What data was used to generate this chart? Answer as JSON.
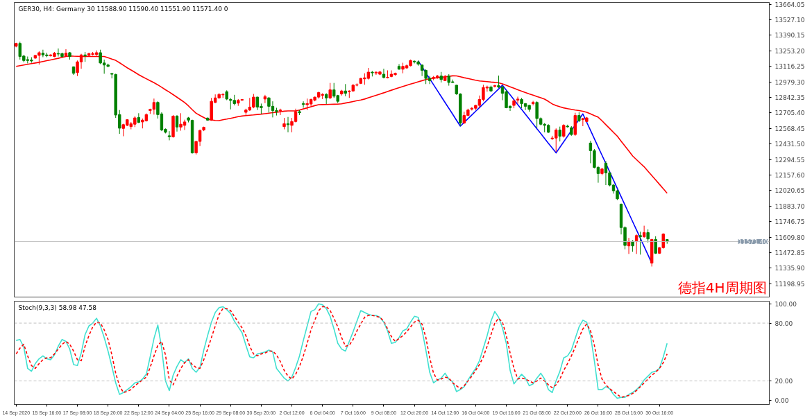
{
  "chart_data": [
    {
      "type": "candlestick",
      "title": "GER30, H4:  Germany 30  11588.90 11590.40 11551.90 11571.40  0",
      "tick_labels": "y",
      "ylim": [
        11082,
        13680
      ],
      "yticks": [
        {
          "value": 13664.05,
          "label": "13664.05"
        },
        {
          "value": 13527.1,
          "label": "13527.10"
        },
        {
          "value": 13390.15,
          "label": "13390.15"
        },
        {
          "value": 13253.2,
          "label": "13253.20"
        },
        {
          "value": 13116.25,
          "label": "13116.25"
        },
        {
          "value": 12979.3,
          "label": "12979.30"
        },
        {
          "value": 12842.35,
          "label": "12842.35"
        },
        {
          "value": 12705.4,
          "label": "12705.40"
        },
        {
          "value": 12568.45,
          "label": "12568.45"
        },
        {
          "value": 12431.5,
          "label": "12431.50"
        },
        {
          "value": 12294.55,
          "label": "12294.55"
        },
        {
          "value": 12157.6,
          "label": "12157.60"
        },
        {
          "value": 12020.65,
          "label": "12020.65"
        },
        {
          "value": 11883.7,
          "label": "11883.70"
        },
        {
          "value": 11746.75,
          "label": "11746.75"
        },
        {
          "value": 11609.8,
          "label": "11609.80"
        },
        {
          "value": 11472.85,
          "label": "11472.85"
        },
        {
          "value": 11335.9,
          "label": "11335.90"
        },
        {
          "value": 11198.95,
          "label": "11198.95"
        }
      ],
      "categories": [
        null,
        null,
        null,
        null,
        null,
        null,
        null,
        null,
        null,
        null,
        null,
        null,
        null,
        null,
        null,
        null,
        null,
        null,
        null,
        null,
        null,
        null,
        null,
        null,
        null,
        null,
        null,
        null,
        null,
        null,
        null,
        null,
        null,
        null,
        null,
        null,
        null,
        null,
        null,
        null,
        null,
        null,
        null,
        null,
        null,
        null,
        null,
        null,
        null,
        null,
        null,
        null,
        null,
        null,
        null,
        null,
        null,
        null,
        null,
        null,
        null,
        null,
        null,
        null,
        null,
        null,
        null,
        null,
        null,
        null,
        null,
        null,
        null,
        null,
        null,
        null,
        null,
        null,
        null,
        null,
        null,
        null,
        null,
        null,
        null,
        null,
        null,
        null,
        null,
        null,
        null,
        null,
        null,
        null,
        null,
        null,
        null,
        null,
        null,
        null,
        null,
        null,
        null,
        null,
        null,
        null,
        null,
        null,
        null,
        null,
        null,
        null,
        null,
        null,
        null,
        null,
        null,
        null,
        null,
        null,
        null,
        null,
        null,
        null,
        null,
        null,
        null,
        null,
        null,
        null,
        null,
        null,
        null,
        null,
        null,
        null,
        null,
        null,
        null,
        null,
        null,
        null,
        null,
        null,
        null,
        null,
        null,
        null,
        null,
        null,
        null,
        null,
        null,
        null,
        null,
        null,
        null,
        null,
        null,
        null,
        null,
        null,
        null,
        null,
        null,
        null,
        null,
        null,
        null,
        null,
        null
      ],
      "ohlc": [
        [
          13294,
          13324,
          13284,
          13318
        ],
        [
          13318,
          13334,
          13176,
          13203
        ],
        [
          13207,
          13217,
          13152,
          13168
        ],
        [
          13176,
          13203,
          13142,
          13168
        ],
        [
          13172,
          13197,
          13148,
          13164
        ],
        [
          13189,
          13217,
          13183,
          13213
        ],
        [
          13213,
          13249,
          13132,
          13237
        ],
        [
          13233,
          13263,
          13197,
          13217
        ],
        [
          13217,
          13237,
          13197,
          13209
        ],
        [
          13209,
          13223,
          13203,
          13217
        ],
        [
          13203,
          13243,
          13197,
          13233
        ],
        [
          13229,
          13274,
          13203,
          13225
        ],
        [
          13229,
          13237,
          13193,
          13203
        ],
        [
          13209,
          13268,
          13203,
          13233
        ],
        [
          13237,
          13243,
          13176,
          13203
        ],
        [
          13112,
          13116,
          13041,
          13055
        ],
        [
          13061,
          13168,
          13031,
          13156
        ],
        [
          13156,
          13227,
          13095,
          13217
        ],
        [
          13217,
          13243,
          13156,
          13209
        ],
        [
          13213,
          13237,
          13203,
          13229
        ],
        [
          13221,
          13243,
          13213,
          13229
        ],
        [
          13221,
          13257,
          13209,
          13237
        ],
        [
          13237,
          13263,
          13136,
          13146
        ],
        [
          13146,
          13176,
          13051,
          13128
        ],
        [
          13128,
          13140,
          13108,
          13116
        ],
        [
          13053,
          13059,
          13010,
          13047
        ],
        [
          13045,
          13051,
          12662,
          12687
        ],
        [
          12691,
          12731,
          12521,
          12571
        ],
        [
          12569,
          12610,
          12500,
          12602
        ],
        [
          12596,
          12650,
          12589,
          12646
        ],
        [
          12585,
          12626,
          12561,
          12610
        ],
        [
          12606,
          12677,
          12581,
          12662
        ],
        [
          12666,
          12703,
          12616,
          12622
        ],
        [
          12626,
          12656,
          12569,
          12642
        ],
        [
          12636,
          12701,
          12630,
          12691
        ],
        [
          12727,
          12743,
          12697,
          12737
        ],
        [
          12737,
          12832,
          12691,
          12798
        ],
        [
          12798,
          12808,
          12656,
          12691
        ],
        [
          12697,
          12711,
          12545,
          12555
        ],
        [
          12561,
          12569,
          12525,
          12535
        ],
        [
          12504,
          12545,
          12464,
          12496
        ],
        [
          12494,
          12687,
          12488,
          12677
        ],
        [
          12677,
          12687,
          12541,
          12581
        ],
        [
          12581,
          12703,
          12549,
          12606
        ],
        [
          12596,
          12646,
          12555,
          12626
        ],
        [
          12662,
          12670,
          12622,
          12642
        ],
        [
          12640,
          12646,
          12347,
          12353
        ],
        [
          12353,
          12460,
          12339,
          12454
        ],
        [
          12454,
          12559,
          12413,
          12551
        ],
        [
          12555,
          12585,
          12545,
          12579
        ],
        [
          12660,
          12666,
          12636,
          12642
        ],
        [
          12642,
          12838,
          12636,
          12808
        ],
        [
          12798,
          12869,
          12792,
          12838
        ],
        [
          12838,
          12879,
          12832,
          12869
        ],
        [
          12865,
          12879,
          12838,
          12869
        ],
        [
          12893,
          12905,
          12818,
          12828
        ],
        [
          12824,
          12838,
          12737,
          12816
        ],
        [
          12816,
          12865,
          12772,
          12788
        ],
        [
          12792,
          12828,
          12768,
          12816
        ],
        [
          12818,
          12828,
          12812,
          12824
        ],
        [
          12711,
          12743,
          12687,
          12731
        ],
        [
          12731,
          12838,
          12723,
          12757
        ],
        [
          12757,
          12873,
          12747,
          12845
        ],
        [
          12845,
          12849,
          12731,
          12757
        ],
        [
          12764,
          12788,
          12697,
          12751
        ],
        [
          12828,
          12865,
          12792,
          12849
        ],
        [
          12838,
          12845,
          12707,
          12764
        ],
        [
          12764,
          12808,
          12666,
          12727
        ],
        [
          12727,
          12751,
          12683,
          12719
        ],
        [
          12723,
          12743,
          12687,
          12731
        ],
        [
          12585,
          12662,
          12561,
          12610
        ],
        [
          12610,
          12670,
          12535,
          12602
        ],
        [
          12596,
          12662,
          12535,
          12630
        ],
        [
          12630,
          12743,
          12622,
          12717
        ],
        [
          12717,
          12731,
          12687,
          12707
        ],
        [
          12788,
          12808,
          12751,
          12780
        ],
        [
          12778,
          12832,
          12731,
          12788
        ],
        [
          12784,
          12832,
          12764,
          12824
        ],
        [
          12818,
          12849,
          12808,
          12845
        ],
        [
          12845,
          12893,
          12832,
          12885
        ],
        [
          12861,
          12879,
          12828,
          12869
        ],
        [
          12869,
          12879,
          12784,
          12838
        ],
        [
          12838,
          12970,
          12828,
          12909
        ],
        [
          12909,
          12970,
          12838,
          12853
        ],
        [
          12859,
          12865,
          12792,
          12808
        ],
        [
          12873,
          12909,
          12859,
          12899
        ],
        [
          12899,
          12960,
          12853,
          12879
        ],
        [
          12893,
          12905,
          12838,
          12899
        ],
        [
          12899,
          12960,
          12893,
          12950
        ],
        [
          12950,
          12966,
          12940,
          12954
        ],
        [
          12966,
          13015,
          12960,
          13010
        ],
        [
          13006,
          13055,
          12954,
          13015
        ],
        [
          13010,
          13102,
          13000,
          13065
        ],
        [
          13065,
          13075,
          13027,
          13059
        ],
        [
          13057,
          13071,
          13041,
          13065
        ],
        [
          13047,
          13075,
          13039,
          13067
        ],
        [
          13047,
          13095,
          13010,
          13018
        ],
        [
          13016,
          13081,
          13010,
          13020
        ],
        [
          13027,
          13081,
          13020,
          13047
        ],
        [
          13043,
          13061,
          13035,
          13055
        ],
        [
          13116,
          13136,
          13087,
          13091
        ],
        [
          13091,
          13148,
          13055,
          13116
        ],
        [
          13102,
          13132,
          13095,
          13122
        ],
        [
          13122,
          13176,
          13116,
          13168
        ],
        [
          13162,
          13168,
          13142,
          13156
        ],
        [
          13156,
          13168,
          13122,
          13136
        ],
        [
          13128,
          13132,
          13031,
          13081
        ],
        [
          13081,
          13091,
          12960,
          13010
        ],
        [
          13010,
          13031,
          12960,
          12990
        ],
        [
          13010,
          13031,
          12994,
          13020
        ],
        [
          13020,
          13041,
          13006,
          13031
        ],
        [
          13031,
          13067,
          12974,
          13000
        ],
        [
          12990,
          13041,
          12986,
          13027
        ],
        [
          13031,
          13047,
          12946,
          12974
        ],
        [
          12980,
          13000,
          12970,
          12974
        ],
        [
          12950,
          12954,
          12865,
          12873
        ],
        [
          12873,
          12879,
          12589,
          12616
        ],
        [
          12616,
          12717,
          12610,
          12683
        ],
        [
          12683,
          12743,
          12677,
          12731
        ],
        [
          12739,
          12757,
          12727,
          12747
        ],
        [
          12747,
          12778,
          12731,
          12772
        ],
        [
          12772,
          12859,
          12747,
          12824
        ],
        [
          12824,
          12954,
          12808,
          12930
        ],
        [
          12925,
          12946,
          12893,
          12934
        ],
        [
          12934,
          12946,
          12893,
          12899
        ],
        [
          12940,
          12954,
          12930,
          12946
        ],
        [
          12946,
          13035,
          12925,
          12934
        ],
        [
          12934,
          12946,
          12818,
          12879
        ],
        [
          12893,
          12905,
          12747,
          12751
        ],
        [
          12764,
          12772,
          12723,
          12751
        ],
        [
          12772,
          12824,
          12747,
          12812
        ],
        [
          12818,
          12849,
          12788,
          12828
        ],
        [
          12824,
          12838,
          12747,
          12788
        ],
        [
          12788,
          12792,
          12731,
          12764
        ],
        [
          12772,
          12778,
          12717,
          12737
        ],
        [
          12788,
          12812,
          12772,
          12798
        ],
        [
          12798,
          12808,
          12575,
          12656
        ],
        [
          12656,
          12666,
          12596,
          12606
        ],
        [
          12606,
          12616,
          12535,
          12596
        ],
        [
          12596,
          12606,
          12529,
          12535
        ],
        [
          12478,
          12504,
          12468,
          12484
        ],
        [
          12484,
          12569,
          12363,
          12555
        ],
        [
          12555,
          12585,
          12454,
          12500
        ],
        [
          12500,
          12606,
          12488,
          12596
        ],
        [
          12589,
          12602,
          12575,
          12583
        ],
        [
          12575,
          12589,
          12504,
          12515
        ],
        [
          12515,
          12707,
          12504,
          12683
        ],
        [
          12683,
          12711,
          12626,
          12636
        ],
        [
          12646,
          12662,
          12589,
          12656
        ],
        [
          12630,
          12670,
          12626,
          12662
        ],
        [
          12440,
          12460,
          12262,
          12373
        ],
        [
          12373,
          12387,
          12217,
          12225
        ],
        [
          12225,
          12237,
          12090,
          12171
        ],
        [
          12171,
          12221,
          12156,
          12211
        ],
        [
          12262,
          12282,
          12069,
          12177
        ],
        [
          12177,
          12191,
          12059,
          12069
        ],
        [
          12069,
          12079,
          11994,
          12019
        ],
        [
          12019,
          12029,
          11938,
          11948
        ],
        [
          11901,
          11907,
          11634,
          11695
        ],
        [
          11695,
          11705,
          11503,
          11537
        ],
        [
          11533,
          11604,
          11462,
          11573
        ],
        [
          11573,
          11584,
          11482,
          11533
        ],
        [
          11577,
          11634,
          11462,
          11624
        ],
        [
          11624,
          11658,
          11456,
          11614
        ],
        [
          11614,
          11711,
          11604,
          11650
        ],
        [
          11650,
          11679,
          11563,
          11594
        ],
        [
          11381,
          11594,
          11351,
          11590
        ],
        [
          11590,
          11618,
          11462,
          11468
        ],
        [
          11468,
          11523,
          11462,
          11517
        ],
        [
          11517,
          11644,
          11509,
          11638
        ],
        [
          11588.9,
          11590.4,
          11551.9,
          11571.4
        ]
      ],
      "colors": [
        "#ff0000",
        "#008000",
        "#008000",
        "#008000",
        "#008000",
        "#ff0000",
        "#ff0000",
        "#008000",
        "#008000",
        "#ff0000",
        "#ff0000",
        "#008000",
        "#008000",
        "#ff0000",
        "#008000",
        "#008000",
        "#ff0000",
        "#ff0000",
        "#008000",
        "#ff0000",
        "#ff0000",
        "#ff0000",
        "#008000",
        "#008000",
        "#008000",
        "#008000",
        "#008000",
        "#008000",
        "#ff0000",
        "#ff0000",
        "#ff0000",
        "#ff0000",
        "#008000",
        "#ff0000",
        "#ff0000",
        "#ff0000",
        "#ff0000",
        "#008000",
        "#008000",
        "#008000",
        "#008000",
        "#ff0000",
        "#008000",
        "#ff0000",
        "#ff0000",
        "#008000",
        "#008000",
        "#ff0000",
        "#ff0000",
        "#ff0000",
        "#008000",
        "#ff0000",
        "#ff0000",
        "#ff0000",
        "#ff0000",
        "#008000",
        "#008000",
        "#008000",
        "#ff0000",
        "#ff0000",
        "#ff0000",
        "#ff0000",
        "#ff0000",
        "#008000",
        "#008000",
        "#ff0000",
        "#008000",
        "#008000",
        "#008000",
        "#ff0000",
        "#ff0000",
        "#008000",
        "#ff0000",
        "#ff0000",
        "#008000",
        "#008000",
        "#ff0000",
        "#ff0000",
        "#ff0000",
        "#ff0000",
        "#ff0000",
        "#008000",
        "#ff0000",
        "#008000",
        "#008000",
        "#ff0000",
        "#008000",
        "#ff0000",
        "#ff0000",
        "#ff0000",
        "#ff0000",
        "#ff0000",
        "#ff0000",
        "#008000",
        "#ff0000",
        "#ff0000",
        "#008000",
        "#ff0000",
        "#ff0000",
        "#ff0000",
        "#008000",
        "#ff0000",
        "#ff0000",
        "#ff0000",
        "#008000",
        "#008000",
        "#008000",
        "#008000",
        "#008000",
        "#ff0000",
        "#ff0000",
        "#008000",
        "#ff0000",
        "#008000",
        "#008000",
        "#008000",
        "#008000",
        "#ff0000",
        "#ff0000",
        "#ff0000",
        "#ff0000",
        "#ff0000",
        "#ff0000",
        "#ff0000",
        "#008000",
        "#ff0000",
        "#008000",
        "#008000",
        "#008000",
        "#008000",
        "#ff0000",
        "#ff0000",
        "#008000",
        "#008000",
        "#008000",
        "#ff0000",
        "#008000",
        "#008000",
        "#008000",
        "#008000",
        "#ff0000",
        "#ff0000",
        "#008000",
        "#ff0000",
        "#008000",
        "#008000",
        "#ff0000",
        "#008000",
        "#ff0000",
        "#ff0000",
        "#008000",
        "#008000",
        "#008000",
        "#ff0000",
        "#008000",
        "#008000",
        "#008000",
        "#008000",
        "#008000",
        "#008000",
        "#ff0000",
        "#008000",
        "#ff0000",
        "#008000",
        "#ff0000",
        "#008000",
        "#ff0000",
        "#008000",
        "#ff0000",
        "#ff0000",
        "#008000"
      ],
      "series": [
        {
          "type": "line",
          "color": "#ff0000",
          "values": [
            13116,
            13122,
            13128,
            13134,
            13140,
            13146,
            13152,
            13159,
            13166,
            13173,
            13180,
            13187,
            13195,
            13203,
            13208,
            13206,
            13205,
            13203,
            13203,
            13203,
            13203,
            13203,
            13203,
            13203,
            13192,
            13180,
            13169,
            13148,
            13126,
            13104,
            13084,
            13064,
            13043,
            13024,
            13007,
            12989,
            12972,
            12953,
            12932,
            12910,
            12889,
            12867,
            12844,
            12821,
            12797,
            12768,
            12734,
            12703,
            12684,
            12665,
            12649,
            12644,
            12639,
            12638,
            12645,
            12651,
            12658,
            12665,
            12673,
            12678,
            12682,
            12685,
            12688,
            12692,
            12695,
            12699,
            12703,
            12708,
            12712,
            12716,
            12721,
            12723,
            12723,
            12723,
            12731,
            12741,
            12750,
            12760,
            12770,
            12778,
            12779,
            12780,
            12781,
            12782,
            12783,
            12786,
            12793,
            12799,
            12806,
            12813,
            12820,
            12828,
            12839,
            12850,
            12861,
            12872,
            12883,
            12895,
            12906,
            12917,
            12928,
            12939,
            12950,
            12960,
            12970,
            12980,
            12990,
            13000,
            13008,
            13012,
            13016,
            13020,
            13024,
            13028,
            13033,
            13032,
            13024,
            13016,
            13009,
            13001,
            12994,
            12988,
            12985,
            12982,
            12978,
            12975,
            12971,
            12962,
            12949,
            12936,
            12923,
            12910,
            12897,
            12885,
            12873,
            12862,
            12850,
            12839,
            12827,
            12807,
            12785,
            12771,
            12760,
            12750,
            12743,
            12737,
            12731,
            12726,
            12720,
            12711,
            12697,
            12682,
            12668,
            12636,
            12602,
            12568,
            12534,
            12500,
            12456,
            12413,
            12370,
            12326,
            12294,
            12262,
            12231,
            12192,
            12153,
            12115,
            12076,
            12037,
            11998
          ]
        },
        {
          "type": "line",
          "color": "#0000ff",
          "values": [
            null,
            null,
            null,
            null,
            null,
            null,
            null,
            null,
            null,
            null,
            null,
            null,
            null,
            null,
            null,
            null,
            null,
            null,
            null,
            null,
            null,
            null,
            null,
            null,
            null,
            null,
            null,
            null,
            null,
            null,
            null,
            null,
            null,
            null,
            null,
            null,
            null,
            null,
            null,
            null,
            null,
            null,
            null,
            null,
            null,
            null,
            null,
            null,
            null,
            null,
            null,
            null,
            null,
            null,
            null,
            null,
            null,
            null,
            null,
            null,
            null,
            null,
            null,
            null,
            null,
            null,
            null,
            null,
            null,
            null,
            null,
            null,
            null,
            null,
            null,
            null,
            null,
            null,
            null,
            null,
            null,
            null,
            null,
            null,
            null,
            null,
            null,
            null,
            null,
            null,
            null,
            null,
            null,
            null,
            null,
            null,
            null,
            null,
            null,
            null,
            null,
            null,
            null,
            null,
            null,
            13164,
            13112,
            13059,
            13007,
            12955,
            12903,
            12850,
            12798,
            12746,
            12694,
            12641,
            12589,
            12622,
            12655,
            12687,
            12720,
            12753,
            12786,
            12819,
            12852,
            12884,
            12917,
            12950,
            12907,
            12865,
            12822,
            12779,
            12737,
            12694,
            12651,
            12609,
            12566,
            12524,
            12481,
            12438,
            12396,
            12353,
            12402,
            12451,
            12500,
            12550,
            12599,
            12648,
            12697,
            12624,
            12551,
            12478,
            12405,
            12332,
            12259,
            12186,
            12113,
            12039,
            11966,
            11893,
            11820,
            11747,
            11674,
            11601,
            11528,
            11454,
            11381,
            null,
            null,
            null,
            null
          ]
        }
      ],
      "ref_lines": [
        {
          "axis": "y",
          "value": 11571.4,
          "label": "11571.40",
          "color": "#c0c0c0"
        }
      ],
      "annotations": [
        "德指4H周期图"
      ]
    },
    {
      "type": "line",
      "title": "Stoch(9,3,3) 58.98 47.58",
      "ylim": [
        -4.4,
        102.7
      ],
      "categories": [
        "14 Sep 2020",
        null,
        null,
        null,
        null,
        null,
        null,
        null,
        "15 Sep 16:00",
        null,
        null,
        null,
        null,
        null,
        null,
        null,
        "17 Sep 08:00",
        null,
        null,
        null,
        null,
        null,
        null,
        null,
        "18 Sep 20:00",
        null,
        null,
        null,
        null,
        null,
        null,
        null,
        "22 Sep 12:00",
        null,
        null,
        null,
        null,
        null,
        null,
        null,
        "24 Sep 04:00",
        null,
        null,
        null,
        null,
        null,
        null,
        null,
        "25 Sep 16:00",
        null,
        null,
        null,
        null,
        null,
        null,
        null,
        "29 Sep 08:00",
        null,
        null,
        null,
        null,
        null,
        null,
        null,
        "30 Sep 20:00",
        null,
        null,
        null,
        null,
        null,
        null,
        null,
        "2 Oct 12:00",
        null,
        null,
        null,
        null,
        null,
        null,
        null,
        "6 Oct 04:00",
        null,
        null,
        null,
        null,
        null,
        null,
        null,
        "7 Oct 16:00",
        null,
        null,
        null,
        null,
        null,
        null,
        null,
        "9 Oct 08:00",
        null,
        null,
        null,
        null,
        null,
        null,
        null,
        "12 Oct 20:00",
        null,
        null,
        null,
        null,
        null,
        null,
        null,
        "14 Oct 12:00",
        null,
        null,
        null,
        null,
        null,
        null,
        null,
        "16 Oct 04:00",
        null,
        null,
        null,
        null,
        null,
        null,
        null,
        "19 Oct 16:00",
        null,
        null,
        null,
        null,
        null,
        null,
        null,
        "21 Oct 08:00",
        null,
        null,
        null,
        null,
        null,
        null,
        null,
        "22 Oct 20:00",
        null,
        null,
        null,
        null,
        null,
        null,
        null,
        "26 Oct 16:00",
        null,
        null,
        null,
        null,
        null,
        null,
        null,
        "28 Oct 16:00",
        null,
        null,
        null,
        null,
        null,
        null,
        null,
        "30 Oct 16:00",
        null,
        null
      ],
      "yticks": [
        {
          "value": 0,
          "label": "0.00"
        },
        {
          "value": 20,
          "label": "20.00"
        },
        {
          "value": 80,
          "label": "80.00"
        },
        {
          "value": 100,
          "label": "100.00"
        }
      ],
      "series": [
        {
          "color": "#40e0d0",
          "values": [
            62,
            63,
            55,
            33,
            30,
            38,
            43,
            46,
            43,
            42,
            47,
            56,
            63,
            61,
            53,
            37,
            36,
            49,
            68,
            77,
            80,
            85,
            77,
            65,
            51,
            35,
            18,
            6,
            8,
            11,
            14,
            18,
            19,
            22,
            27,
            45,
            64,
            78,
            54,
            20,
            10,
            26,
            35,
            42,
            39,
            43,
            33,
            29,
            34,
            52,
            67,
            81,
            91,
            96,
            97,
            94,
            90,
            82,
            76,
            70,
            57,
            45,
            44,
            48,
            49,
            50,
            52,
            50,
            33,
            28,
            23,
            20,
            24,
            34,
            46,
            62,
            77,
            92,
            94,
            100,
            99,
            95,
            87,
            74,
            59,
            53,
            51,
            61,
            71,
            82,
            93,
            91,
            89,
            88,
            88,
            86,
            81,
            72,
            59,
            60,
            65,
            72,
            74,
            81,
            87,
            86,
            73,
            52,
            29,
            18,
            21,
            23,
            28,
            22,
            19,
            9,
            11,
            14,
            21,
            27,
            33,
            41,
            54,
            67,
            82,
            92,
            86,
            75,
            59,
            31,
            17,
            22,
            27,
            23,
            15,
            17,
            23,
            28,
            22,
            11,
            8,
            20,
            30,
            44,
            46,
            52,
            64,
            76,
            83,
            81,
            67,
            41,
            11,
            11,
            14,
            12,
            6,
            2,
            3,
            3,
            6,
            8,
            11,
            15,
            21,
            25,
            29,
            30,
            33,
            45,
            59
          ]
        },
        {
          "color": "#ff0000",
          "line_style": "dashed",
          "values": [
            48,
            54,
            58,
            46,
            36,
            33,
            38,
            42,
            44,
            44,
            48,
            53,
            58,
            61,
            58,
            51,
            42,
            41,
            56,
            67,
            76,
            81,
            80,
            73,
            63,
            47,
            28,
            15,
            8,
            9,
            11,
            15,
            18,
            21,
            24,
            34,
            46,
            57,
            61,
            47,
            21,
            16,
            25,
            33,
            39,
            42,
            37,
            34,
            33,
            42,
            53,
            65,
            77,
            89,
            95,
            95,
            93,
            87,
            81,
            75,
            67,
            56,
            48,
            46,
            48,
            49,
            51,
            51,
            47,
            40,
            31,
            25,
            22,
            27,
            35,
            46,
            59,
            73,
            83,
            93,
            97,
            97,
            93,
            85,
            76,
            65,
            56,
            57,
            63,
            72,
            79,
            86,
            88,
            88,
            87,
            86,
            82,
            74,
            66,
            61,
            64,
            67,
            71,
            76,
            81,
            83,
            79,
            65,
            44,
            28,
            21,
            22,
            24,
            23,
            18,
            15,
            12,
            15,
            20,
            25,
            31,
            37,
            45,
            56,
            68,
            80,
            85,
            81,
            67,
            49,
            33,
            22,
            23,
            22,
            20,
            18,
            20,
            23,
            20,
            16,
            13,
            16,
            22,
            31,
            38,
            46,
            55,
            65,
            74,
            79,
            72,
            57,
            36,
            22,
            16,
            12,
            9,
            6,
            3,
            4,
            5,
            7,
            10,
            14,
            18,
            22,
            26,
            29,
            33,
            39,
            48
          ]
        }
      ],
      "ref_lines": [
        {
          "axis": "y",
          "value": 80,
          "color": "#c0c0c0",
          "line_style": "dashed"
        },
        {
          "axis": "y",
          "value": 20,
          "color": "#c0c0c0",
          "line_style": "dashed"
        }
      ]
    }
  ]
}
